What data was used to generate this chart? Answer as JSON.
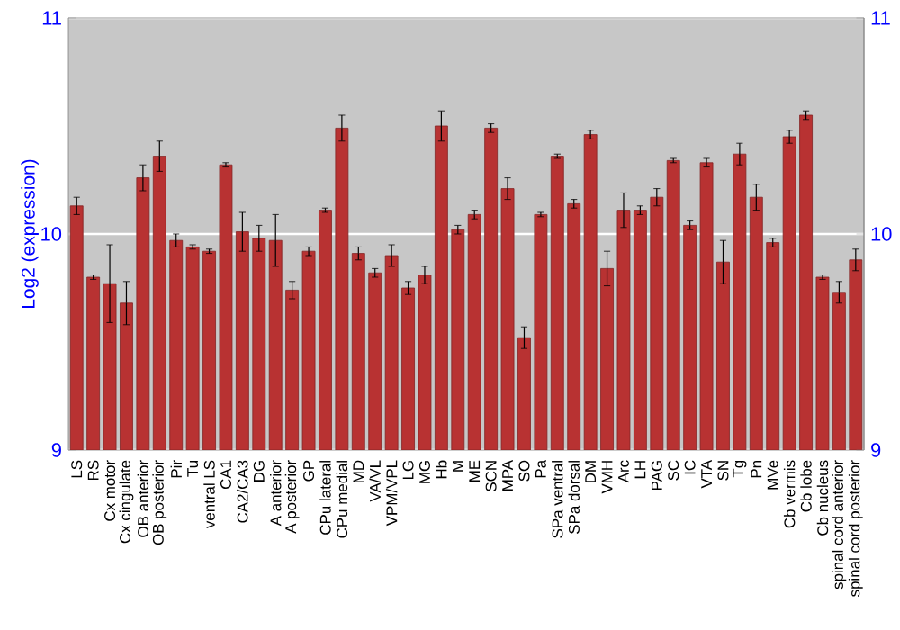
{
  "chart_data": {
    "type": "bar",
    "ylabel": "Log2 (expression)",
    "categories": [
      "LS",
      "RS",
      "Cx motor",
      "Cx cingulate",
      "OB anterior",
      "OB posterior",
      "Pir",
      "Tu",
      "ventral LS",
      "CA1",
      "CA2/CA3",
      "DG",
      "A anterior",
      "A posterior",
      "GP",
      "CPu lateral",
      "CPu medial",
      "MD",
      "VA/VL",
      "VPM/VPL",
      "LG",
      "MG",
      "Hb",
      "M",
      "ME",
      "SCN",
      "MPA",
      "SO",
      "Pa",
      "SPa ventral",
      "SPa dorsal",
      "DM",
      "VMH",
      "Arc",
      "LH",
      "PAG",
      "SC",
      "IC",
      "VTA",
      "SN",
      "Tg",
      "Pn",
      "MVe",
      "Cb vermis",
      "Cb lobe",
      "Cb nucleus",
      "spinal cord anterior",
      "spinal cord posterior"
    ],
    "values": [
      10.13,
      9.8,
      9.77,
      9.68,
      10.26,
      10.36,
      9.97,
      9.94,
      9.92,
      10.32,
      10.01,
      9.98,
      9.97,
      9.74,
      9.92,
      10.11,
      10.49,
      9.91,
      9.82,
      9.9,
      9.75,
      9.81,
      10.5,
      10.02,
      10.09,
      10.49,
      10.21,
      9.52,
      10.09,
      10.36,
      10.14,
      10.46,
      9.84,
      10.11,
      10.11,
      10.17,
      10.34,
      10.04,
      10.33,
      9.87,
      10.37,
      10.17,
      9.96,
      10.45,
      10.55,
      9.8,
      9.73,
      9.88
    ],
    "errors": [
      0.04,
      0.01,
      0.18,
      0.1,
      0.06,
      0.07,
      0.03,
      0.01,
      0.01,
      0.01,
      0.09,
      0.06,
      0.12,
      0.04,
      0.02,
      0.01,
      0.06,
      0.03,
      0.02,
      0.05,
      0.03,
      0.04,
      0.07,
      0.02,
      0.02,
      0.02,
      0.05,
      0.05,
      0.01,
      0.01,
      0.02,
      0.02,
      0.08,
      0.08,
      0.02,
      0.04,
      0.01,
      0.02,
      0.02,
      0.1,
      0.05,
      0.06,
      0.02,
      0.03,
      0.02,
      0.01,
      0.05,
      0.05
    ],
    "color": "#b83232",
    "ylim": [
      9,
      11
    ],
    "yticks": [
      9,
      10,
      11
    ],
    "y2lim": [
      9,
      11
    ],
    "y2ticks": [
      9,
      10,
      11
    ],
    "grid": "y"
  }
}
